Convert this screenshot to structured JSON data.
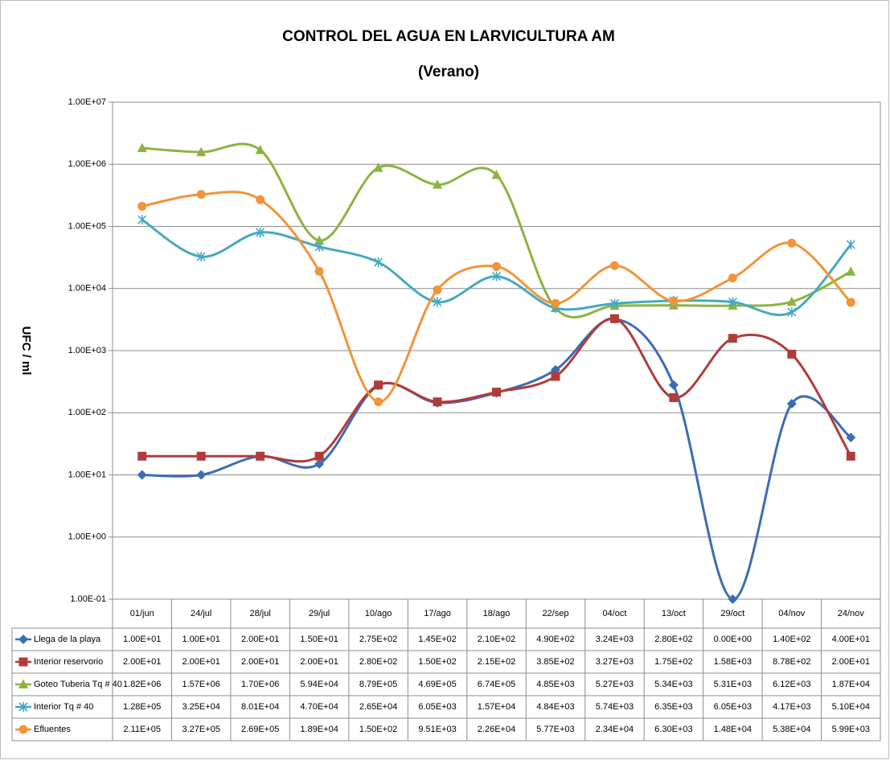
{
  "chart_data": {
    "type": "line",
    "title": "CONTROL DEL AGUA EN LARVICULTURA AM",
    "subtitle": "(Verano)",
    "y_label": "UFC / ml",
    "log_y": true,
    "grid": true,
    "smooth": true,
    "ylim": [
      0.1,
      10000000
    ],
    "yticks": [
      {
        "value": 0.1,
        "label": "1.00E-01"
      },
      {
        "value": 1,
        "label": "1.00E+00"
      },
      {
        "value": 10,
        "label": "1.00E+01"
      },
      {
        "value": 100,
        "label": "1.00E+02"
      },
      {
        "value": 1000,
        "label": "1.00E+03"
      },
      {
        "value": 10000,
        "label": "1.00E+04"
      },
      {
        "value": 100000,
        "label": "1.00E+05"
      },
      {
        "value": 1000000,
        "label": "1.00E+06"
      },
      {
        "value": 10000000,
        "label": "1.00E+07"
      }
    ],
    "categories": [
      "01/jun",
      "24/jul",
      "28/jul",
      "29/jul",
      "10/ago",
      "17/ago",
      "18/ago",
      "22/sep",
      "04/oct",
      "13/oct",
      "29/oct",
      "04/nov",
      "24/nov"
    ],
    "series": [
      {
        "name": "Llega de la playa",
        "color": "#3c6cb4",
        "marker": "diamond",
        "values": [
          10,
          10,
          20,
          15,
          275,
          145,
          210,
          490,
          3240,
          280,
          0,
          140,
          40
        ],
        "value_labels": [
          "1.00E+01",
          "1.00E+01",
          "2.00E+01",
          "1.50E+01",
          "2.75E+02",
          "1.45E+02",
          "2.10E+02",
          "4.90E+02",
          "3.24E+03",
          "2.80E+02",
          "0.00E+00",
          "1.40E+02",
          "4.00E+01"
        ]
      },
      {
        "name": "Interior reservorio",
        "color": "#b03c3a",
        "marker": "square",
        "values": [
          20,
          20,
          20,
          20,
          280,
          150,
          215,
          385,
          3270,
          175,
          1580,
          878,
          20
        ],
        "value_labels": [
          "2.00E+01",
          "2.00E+01",
          "2.00E+01",
          "2.00E+01",
          "2.80E+02",
          "1.50E+02",
          "2.15E+02",
          "3.85E+02",
          "3.27E+03",
          "1.75E+02",
          "1.58E+03",
          "8.78E+02",
          "2.00E+01"
        ]
      },
      {
        "name": "Goteo Tuberia Tq # 40",
        "color": "#8cb33e",
        "marker": "triangle",
        "values": [
          1820000,
          1570000,
          1700000,
          59400,
          879000,
          469000,
          674000,
          4850,
          5270,
          5340,
          5310,
          6120,
          18700
        ],
        "value_labels": [
          "1.82E+06",
          "1.57E+06",
          "1.70E+06",
          "5.94E+04",
          "8.79E+05",
          "4.69E+05",
          "6.74E+05",
          "4.85E+03",
          "5.27E+03",
          "5.34E+03",
          "5.31E+03",
          "6.12E+03",
          "1.87E+04"
        ]
      },
      {
        "name": "Interior Tq # 40",
        "color": "#45a8c2",
        "marker": "asterisk",
        "values": [
          128000,
          32500,
          80100,
          47000,
          26500,
          6050,
          15700,
          4840,
          5740,
          6350,
          6050,
          4170,
          51000
        ],
        "value_labels": [
          "1.28E+05",
          "3.25E+04",
          "8.01E+04",
          "4.70E+04",
          "2.65E+04",
          "6.05E+03",
          "1.57E+04",
          "4.84E+03",
          "5.74E+03",
          "6.35E+03",
          "6.05E+03",
          "4.17E+03",
          "5.10E+04"
        ]
      },
      {
        "name": "Efluentes",
        "color": "#f29438",
        "marker": "circle",
        "values": [
          211000,
          327000,
          269000,
          18900,
          150,
          9510,
          22600,
          5770,
          23400,
          6300,
          14800,
          53800,
          5990
        ],
        "value_labels": [
          "2.11E+05",
          "3.27E+05",
          "2.69E+05",
          "1.89E+04",
          "1.50E+02",
          "9.51E+03",
          "2.26E+04",
          "5.77E+03",
          "2.34E+04",
          "6.30E+03",
          "1.48E+04",
          "5.38E+04",
          "5.99E+03"
        ]
      }
    ]
  }
}
